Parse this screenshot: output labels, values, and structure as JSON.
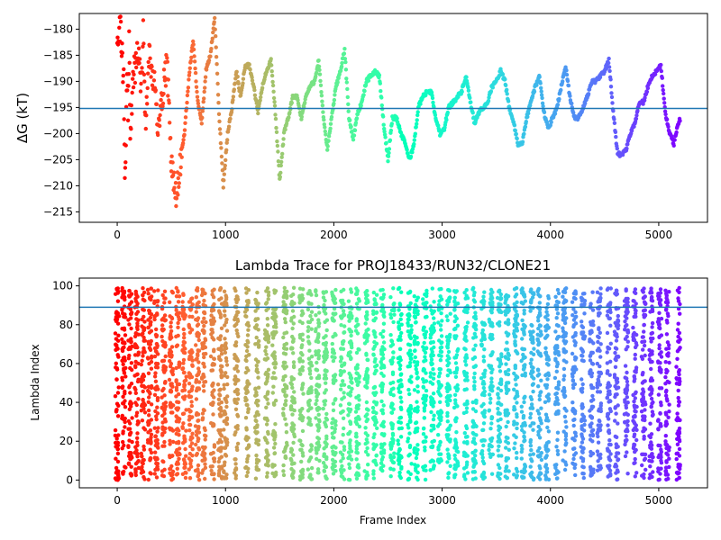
{
  "chart_data": [
    {
      "type": "scatter",
      "ylabel": "ΔG (kT)",
      "xlabel": "",
      "title": "",
      "xlim": [
        -350,
        5450
      ],
      "ylim": [
        -217,
        -177
      ],
      "xticks": [
        0,
        1000,
        2000,
        3000,
        4000,
        5000
      ],
      "yticks": [
        -215,
        -210,
        -205,
        -200,
        -195,
        -190,
        -185,
        -180
      ],
      "reference_line": -195.2,
      "colormap": "rainbow (red at early frames → violet at late frames)",
      "series": [
        {
          "points": [
            [
              0,
              -180
            ],
            [
              30,
              -180
            ],
            [
              60,
              -190
            ],
            [
              70,
              -210
            ],
            [
              80,
              -200
            ],
            [
              90,
              -187
            ],
            [
              100,
              -196
            ],
            [
              110,
              -183
            ],
            [
              120,
              -200
            ],
            [
              150,
              -189
            ],
            [
              180,
              -186
            ],
            [
              200,
              -183
            ],
            [
              220,
              -193
            ],
            [
              240,
              -181
            ],
            [
              260,
              -198
            ],
            [
              300,
              -185
            ],
            [
              340,
              -190
            ],
            [
              380,
              -200
            ],
            [
              420,
              -192
            ],
            [
              460,
              -187
            ],
            [
              500,
              -205
            ],
            [
              540,
              -212
            ],
            [
              580,
              -206
            ],
            [
              620,
              -200
            ],
            [
              660,
              -190
            ],
            [
              700,
              -182
            ],
            [
              740,
              -193
            ],
            [
              780,
              -198
            ],
            [
              820,
              -188
            ],
            [
              860,
              -185
            ],
            [
              900,
              -178
            ],
            [
              940,
              -196
            ],
            [
              980,
              -210
            ],
            [
              1020,
              -200
            ],
            [
              1060,
              -195
            ],
            [
              1100,
              -188
            ],
            [
              1140,
              -193
            ],
            [
              1180,
              -187
            ],
            [
              1220,
              -187
            ],
            [
              1260,
              -191
            ],
            [
              1300,
              -196
            ],
            [
              1340,
              -191
            ],
            [
              1380,
              -188
            ],
            [
              1420,
              -186
            ],
            [
              1460,
              -196
            ],
            [
              1500,
              -209
            ],
            [
              1540,
              -200
            ],
            [
              1580,
              -197
            ],
            [
              1620,
              -193
            ],
            [
              1660,
              -193
            ],
            [
              1700,
              -197
            ],
            [
              1740,
              -193
            ],
            [
              1780,
              -191
            ],
            [
              1820,
              -190
            ],
            [
              1860,
              -186
            ],
            [
              1900,
              -196
            ],
            [
              1940,
              -203
            ],
            [
              1980,
              -197
            ],
            [
              2020,
              -191
            ],
            [
              2060,
              -188
            ],
            [
              2100,
              -184
            ],
            [
              2140,
              -197
            ],
            [
              2180,
              -201
            ],
            [
              2220,
              -196
            ],
            [
              2260,
              -194
            ],
            [
              2300,
              -190
            ],
            [
              2340,
              -189
            ],
            [
              2380,
              -188
            ],
            [
              2420,
              -189
            ],
            [
              2460,
              -198
            ],
            [
              2500,
              -205
            ],
            [
              2540,
              -197
            ],
            [
              2580,
              -197
            ],
            [
              2620,
              -200
            ],
            [
              2660,
              -202
            ],
            [
              2700,
              -205
            ],
            [
              2740,
              -202
            ],
            [
              2780,
              -195
            ],
            [
              2820,
              -193
            ],
            [
              2860,
              -192
            ],
            [
              2900,
              -192
            ],
            [
              2940,
              -197
            ],
            [
              2980,
              -200
            ],
            [
              3020,
              -199
            ],
            [
              3060,
              -195
            ],
            [
              3100,
              -194
            ],
            [
              3140,
              -193
            ],
            [
              3180,
              -192
            ],
            [
              3220,
              -189
            ],
            [
              3260,
              -194
            ],
            [
              3300,
              -198
            ],
            [
              3340,
              -196
            ],
            [
              3380,
              -195
            ],
            [
              3420,
              -194
            ],
            [
              3460,
              -191
            ],
            [
              3500,
              -190
            ],
            [
              3540,
              -188
            ],
            [
              3580,
              -190
            ],
            [
              3620,
              -195
            ],
            [
              3660,
              -198
            ],
            [
              3700,
              -202
            ],
            [
              3740,
              -202
            ],
            [
              3780,
              -197
            ],
            [
              3820,
              -194
            ],
            [
              3860,
              -191
            ],
            [
              3900,
              -189
            ],
            [
              3940,
              -196
            ],
            [
              3980,
              -199
            ],
            [
              4020,
              -197
            ],
            [
              4060,
              -195
            ],
            [
              4100,
              -191
            ],
            [
              4140,
              -187
            ],
            [
              4180,
              -193
            ],
            [
              4220,
              -197
            ],
            [
              4260,
              -197
            ],
            [
              4300,
              -195
            ],
            [
              4340,
              -193
            ],
            [
              4380,
              -190
            ],
            [
              4420,
              -190
            ],
            [
              4460,
              -189
            ],
            [
              4500,
              -188
            ],
            [
              4540,
              -186
            ],
            [
              4580,
              -196
            ],
            [
              4620,
              -204
            ],
            [
              4660,
              -204
            ],
            [
              4700,
              -203
            ],
            [
              4740,
              -200
            ],
            [
              4780,
              -198
            ],
            [
              4820,
              -194
            ],
            [
              4860,
              -194
            ],
            [
              4900,
              -191
            ],
            [
              4940,
              -189
            ],
            [
              4980,
              -188
            ],
            [
              5020,
              -187
            ],
            [
              5060,
              -196
            ],
            [
              5100,
              -200
            ],
            [
              5140,
              -202
            ],
            [
              5180,
              -198
            ],
            [
              5200,
              -197
            ]
          ]
        }
      ]
    },
    {
      "type": "scatter",
      "title": "Lambda Trace for PROJ18433/RUN32/CLONE21",
      "xlabel": "Frame Index",
      "ylabel": "Lambda Index",
      "xlim": [
        -350,
        5450
      ],
      "ylim": [
        -4,
        104
      ],
      "xticks": [
        0,
        1000,
        2000,
        3000,
        4000,
        5000
      ],
      "yticks": [
        0,
        20,
        40,
        60,
        80,
        100
      ],
      "reference_line": 89,
      "colormap": "rainbow (red at early frames → violet at late frames)",
      "sweep_centers": [
        0,
        60,
        120,
        180,
        240,
        300,
        360,
        430,
        500,
        560,
        620,
        680,
        740,
        800,
        880,
        950,
        1000,
        1100,
        1200,
        1290,
        1380,
        1450,
        1550,
        1620,
        1700,
        1780,
        1850,
        1920,
        2000,
        2080,
        2150,
        2220,
        2300,
        2380,
        2450,
        2540,
        2610,
        2700,
        2760,
        2840,
        2910,
        2980,
        3060,
        3130,
        3220,
        3300,
        3380,
        3450,
        3530,
        3600,
        3680,
        3750,
        3830,
        3900,
        3970,
        4060,
        4130,
        4220,
        4300,
        4380,
        4450,
        4540,
        4610,
        4700,
        4780,
        4860,
        4930,
        5010,
        5080,
        5180
      ]
    }
  ]
}
